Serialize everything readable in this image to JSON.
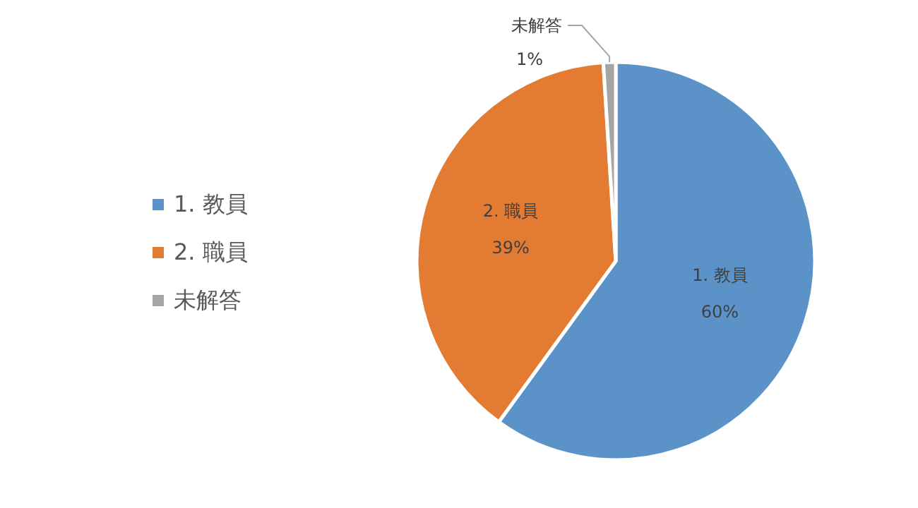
{
  "chart_data": {
    "type": "pie",
    "categories": [
      "1. 教員",
      "2. 職員",
      "未解答"
    ],
    "values": [
      60,
      39,
      1
    ],
    "value_labels": [
      "60%",
      "39%",
      "1%"
    ],
    "colors": [
      "#5b93c9",
      "#e47b32",
      "#a5a5a5"
    ],
    "legend": "left"
  }
}
